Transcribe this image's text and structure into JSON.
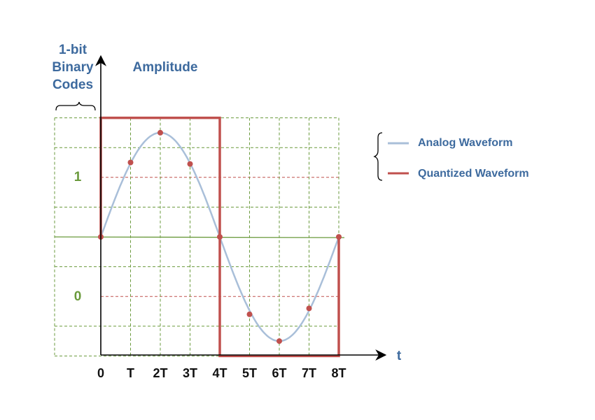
{
  "labels": {
    "y_codes_title": [
      "1-bit",
      "Binary",
      "Codes"
    ],
    "y_axis": "Amplitude",
    "x_axis": "t",
    "codes": [
      "1",
      "0"
    ]
  },
  "x_ticks": [
    "0",
    "T",
    "2T",
    "3T",
    "4T",
    "5T",
    "6T",
    "7T",
    "8T"
  ],
  "legend": [
    {
      "label": "Analog Waveform",
      "color": "#a9bfd9"
    },
    {
      "label": "Quantized Waveform",
      "color": "#c0504d"
    }
  ],
  "colors": {
    "grid": "#6a9a3c",
    "threshold": "#c0504d",
    "samples": "#c0504d",
    "text": "#3d6a9e"
  },
  "chart_data": {
    "type": "line",
    "x": [
      "0",
      "T",
      "2T",
      "3T",
      "4T",
      "5T",
      "6T",
      "7T",
      "8T"
    ],
    "series": [
      {
        "name": "Analog Waveform",
        "kind": "sine",
        "samples": [
          0,
          2.5,
          3.5,
          2.45,
          0,
          -2.6,
          -3.5,
          -2.4,
          0
        ]
      },
      {
        "name": "Quantized Waveform",
        "kind": "step",
        "codes": [
          1,
          1,
          1,
          1,
          0,
          0,
          0,
          0
        ]
      }
    ],
    "amplitude_range": [
      -4,
      4
    ],
    "code_thresholds": [
      2,
      -2
    ]
  }
}
